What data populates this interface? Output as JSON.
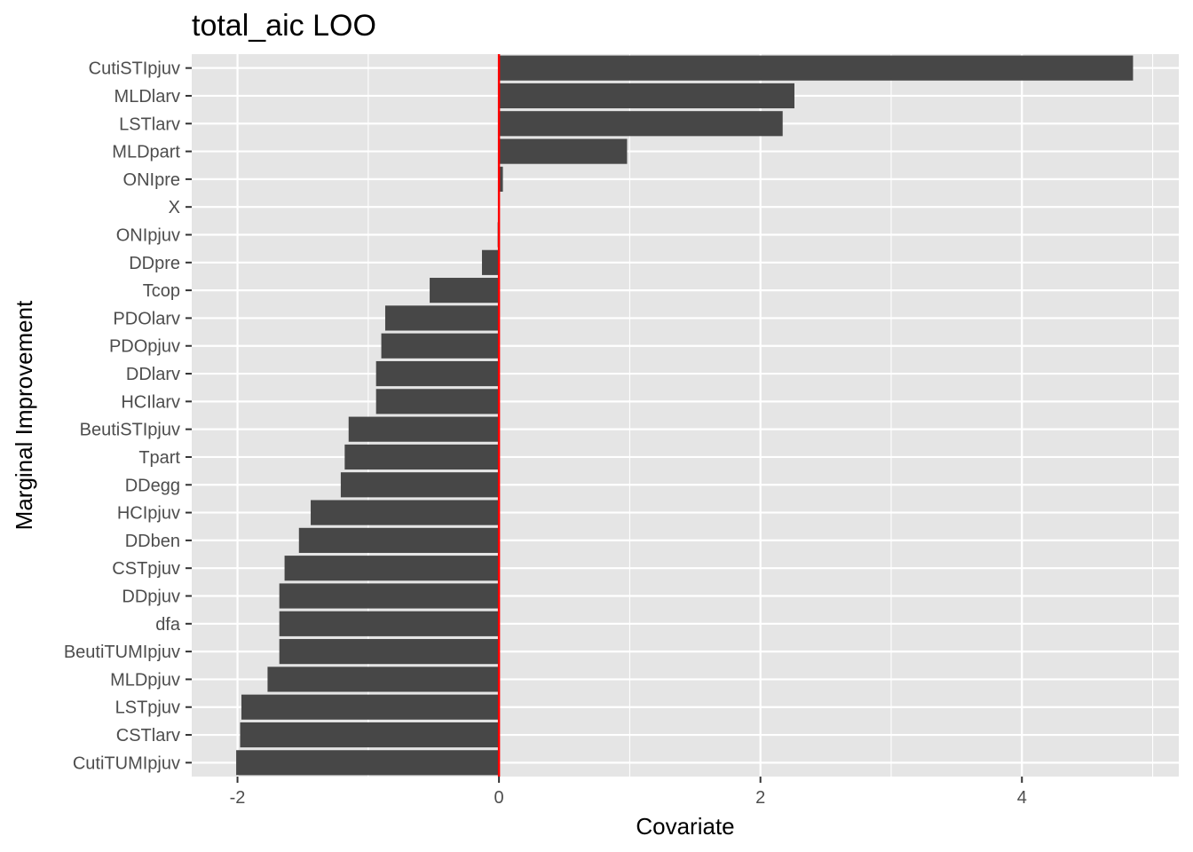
{
  "chart_data": {
    "type": "bar",
    "orientation": "horizontal",
    "title": "total_aic LOO",
    "xlabel": "Covariate",
    "ylabel": "Marginal Improvement",
    "xlim": [
      -2.35,
      5.2
    ],
    "x_ticks": [
      -2,
      0,
      2,
      4
    ],
    "x_tick_labels": [
      "-2",
      "0",
      "2",
      "4"
    ],
    "grid": true,
    "legend": "none",
    "categories": [
      "CutiSTIpjuv",
      "MLDlarv",
      "LSTlarv",
      "MLDpart",
      "ONIpre",
      "X",
      "ONIpjuv",
      "DDpre",
      "Tcop",
      "PDOlarv",
      "PDOpjuv",
      "DDlarv",
      "HCIlarv",
      "BeutiSTIpjuv",
      "Tpart",
      "DDegg",
      "HCIpjuv",
      "DDben",
      "CSTpjuv",
      "DDpjuv",
      "dfa",
      "BeutiTUMIpjuv",
      "MLDpjuv",
      "LSTpjuv",
      "CSTlarv",
      "CutiTUMIpjuv"
    ],
    "values": [
      4.85,
      2.26,
      2.17,
      0.98,
      0.03,
      0.0,
      -0.01,
      -0.13,
      -0.53,
      -0.87,
      -0.9,
      -0.94,
      -0.94,
      -1.15,
      -1.18,
      -1.21,
      -1.44,
      -1.53,
      -1.64,
      -1.68,
      -1.68,
      -1.68,
      -1.77,
      -1.97,
      -1.98,
      -2.01
    ],
    "reference_line": {
      "x": 0
    },
    "colors": {
      "panel_bg": "#e5e5e5",
      "grid_major": "#ffffff",
      "bar": "#474747",
      "reference_line": "#ff0000",
      "tick_text": "#4d4d4d",
      "title_text": "#000000"
    }
  }
}
